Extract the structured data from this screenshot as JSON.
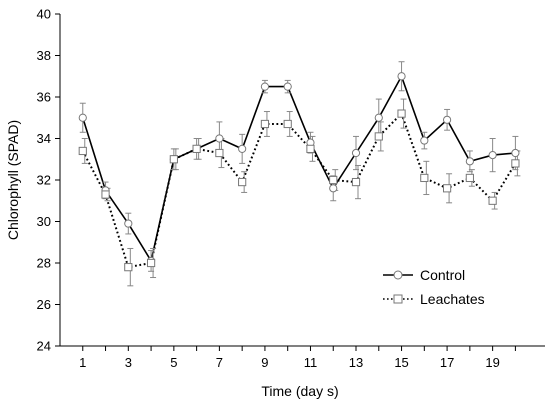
{
  "chart_data": {
    "type": "line",
    "title": "",
    "xlabel": "Time (day s)",
    "ylabel": "Chlorophyll (SPAD)",
    "xlim": [
      0,
      21.3
    ],
    "ylim": [
      24,
      40
    ],
    "xticks": [
      1,
      3,
      5,
      7,
      9,
      11,
      13,
      15,
      17,
      19
    ],
    "yticks": [
      24,
      26,
      28,
      30,
      32,
      34,
      36,
      38,
      40
    ],
    "legend_position": "bottom-right",
    "grid": false,
    "x": [
      1,
      2,
      3,
      4,
      5,
      6,
      7,
      8,
      9,
      10,
      11,
      12,
      13,
      14,
      15,
      16,
      17,
      18,
      19,
      20
    ],
    "series": [
      {
        "name": "Control",
        "style": "solid",
        "marker": "circle",
        "values": [
          35.0,
          31.5,
          29.9,
          28.1,
          33.0,
          33.5,
          34.0,
          33.5,
          36.5,
          36.5,
          33.8,
          31.6,
          33.3,
          35.0,
          37.0,
          33.9,
          34.9,
          32.9,
          33.2,
          33.3
        ],
        "errors": [
          0.7,
          0.4,
          0.5,
          0.5,
          0.5,
          0.5,
          0.8,
          0.7,
          0.3,
          0.3,
          0.5,
          0.6,
          0.8,
          0.9,
          0.7,
          0.4,
          0.5,
          0.5,
          0.8,
          0.8
        ]
      },
      {
        "name": "Leachates",
        "style": "dotted",
        "marker": "square",
        "values": [
          33.4,
          31.3,
          27.8,
          28.0,
          33.0,
          33.5,
          33.3,
          31.9,
          34.7,
          34.7,
          33.5,
          32.0,
          31.9,
          34.1,
          35.2,
          32.1,
          31.6,
          32.1,
          31.0,
          32.8
        ],
        "errors": [
          0.6,
          0.3,
          0.9,
          0.7,
          0.5,
          0.5,
          0.7,
          0.5,
          0.6,
          0.6,
          0.6,
          0.5,
          0.8,
          0.7,
          0.7,
          0.8,
          0.7,
          0.4,
          0.4,
          0.6
        ]
      }
    ]
  }
}
